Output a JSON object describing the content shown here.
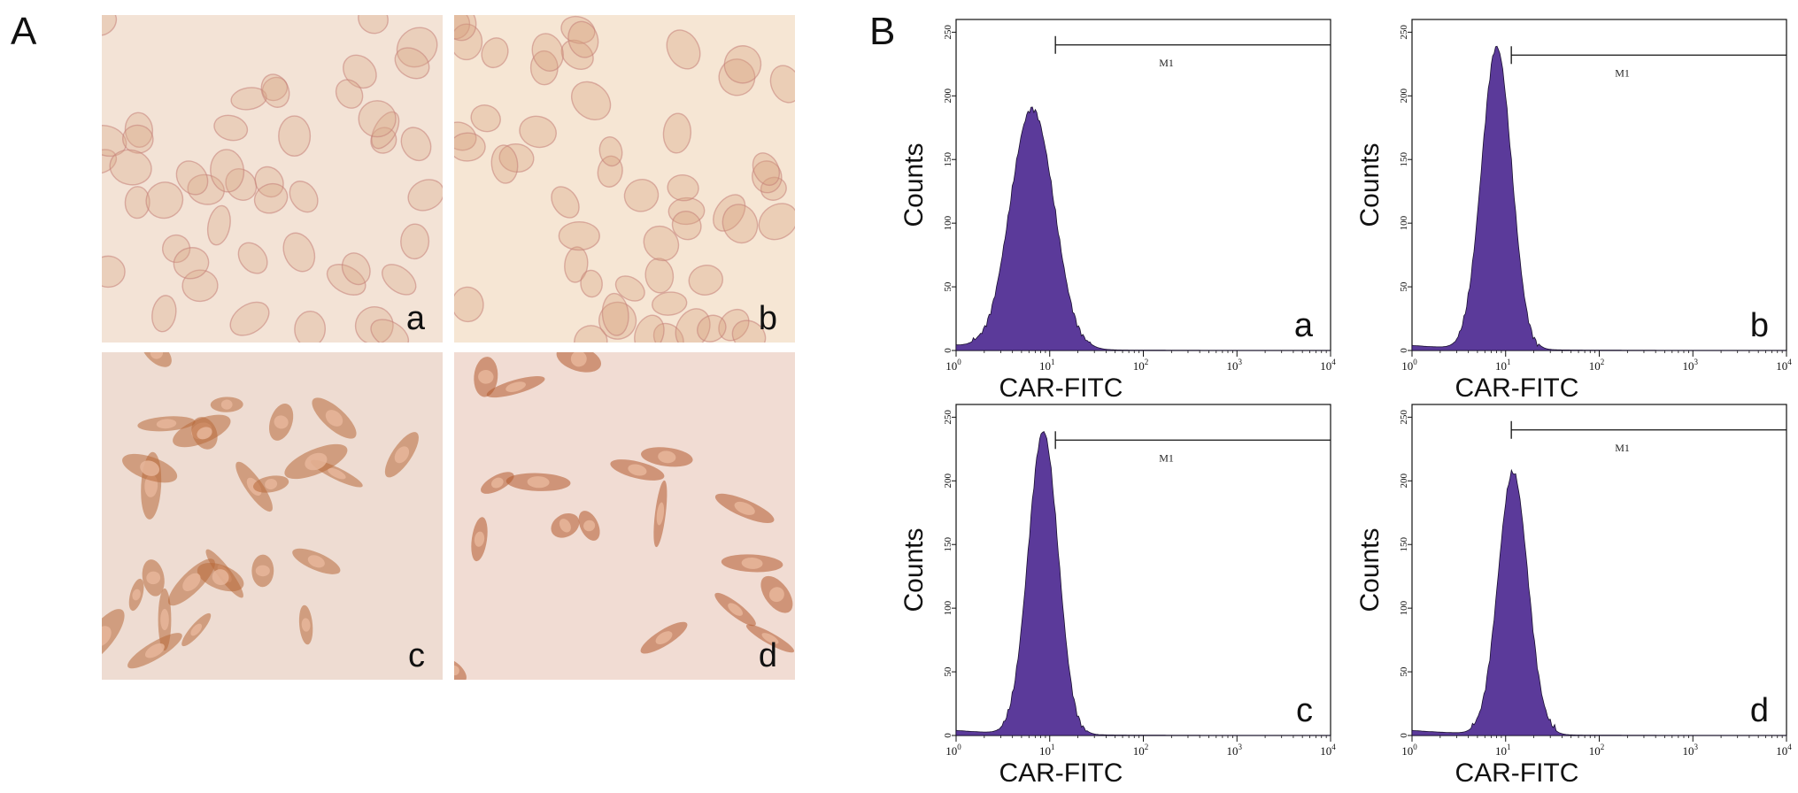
{
  "panel_A": {
    "letter": "A",
    "images": [
      {
        "label": "a"
      },
      {
        "label": "b"
      },
      {
        "label": "c"
      },
      {
        "label": "d"
      }
    ]
  },
  "panel_B": {
    "letter": "B"
  },
  "chart_data": [
    {
      "type": "area",
      "panel": "a",
      "xlabel": "CAR-FITC",
      "ylabel": "Counts",
      "xscale": "log",
      "xlim": [
        1,
        10000
      ],
      "ylim": [
        0,
        260
      ],
      "yticks": [
        "0",
        "50",
        "100",
        "150",
        "200",
        "250"
      ],
      "xticks": [
        "10",
        "10",
        "10",
        "10",
        "10"
      ],
      "xtick_exponents": [
        "0",
        "1",
        "2",
        "3",
        "4"
      ],
      "gate_label": "M1",
      "gate": [
        11.5,
        10000
      ],
      "gate_y": 240,
      "peak": {
        "x": 6.5,
        "y": 190,
        "width": 0.23
      },
      "corner_label": "a"
    },
    {
      "type": "area",
      "panel": "b",
      "xlabel": "CAR-FITC",
      "ylabel": "Counts",
      "xscale": "log",
      "xlim": [
        1,
        10000
      ],
      "ylim": [
        0,
        260
      ],
      "yticks": [
        "0",
        "50",
        "100",
        "150",
        "200",
        "250"
      ],
      "xticks": [
        "10",
        "10",
        "10",
        "10",
        "10"
      ],
      "xtick_exponents": [
        "0",
        "1",
        "2",
        "3",
        "4"
      ],
      "gate_label": "M1",
      "gate": [
        11.5,
        10000
      ],
      "gate_y": 232,
      "peak": {
        "x": 8,
        "y": 238,
        "width": 0.16
      },
      "corner_label": "b"
    },
    {
      "type": "area",
      "panel": "c",
      "xlabel": "CAR-FITC",
      "ylabel": "Counts",
      "xscale": "log",
      "xlim": [
        1,
        10000
      ],
      "ylim": [
        0,
        260
      ],
      "yticks": [
        "0",
        "50",
        "100",
        "150",
        "200",
        "250"
      ],
      "xticks": [
        "10",
        "10",
        "10",
        "10",
        "10"
      ],
      "xtick_exponents": [
        "0",
        "1",
        "2",
        "3",
        "4"
      ],
      "gate_label": "M1",
      "gate": [
        11.5,
        10000
      ],
      "gate_y": 232,
      "peak": {
        "x": 8.5,
        "y": 238,
        "width": 0.16
      },
      "corner_label": "c"
    },
    {
      "type": "area",
      "panel": "d",
      "xlabel": "CAR-FITC",
      "ylabel": "Counts",
      "xscale": "log",
      "xlim": [
        1,
        10000
      ],
      "ylim": [
        0,
        260
      ],
      "yticks": [
        "0",
        "50",
        "100",
        "150",
        "200",
        "250"
      ],
      "xticks": [
        "10",
        "10",
        "10",
        "10",
        "10"
      ],
      "xtick_exponents": [
        "0",
        "1",
        "2",
        "3",
        "4"
      ],
      "gate_label": "M1",
      "gate": [
        11.5,
        10000
      ],
      "gate_y": 240,
      "peak": {
        "x": 12,
        "y": 205,
        "width": 0.16
      },
      "corner_label": "d"
    }
  ],
  "colors": {
    "histogram_fill": "#5b3a9a",
    "axis": "#111111",
    "micro_bg_light": "#f3e3d6",
    "micro_bg_stained": "#f0dcd0",
    "cell_light": "#d9a98a",
    "cell_stained": "#b86a3a"
  }
}
